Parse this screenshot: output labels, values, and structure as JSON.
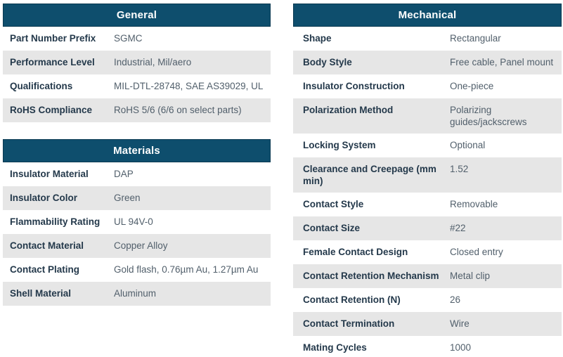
{
  "colors": {
    "header_bg": "#0e4e6d",
    "header_border": "#0b3a52",
    "header_text": "#ffffff",
    "row_alt_bg": "#e6e6e6",
    "label_color": "#24394b",
    "value_color": "#515f6b"
  },
  "tables": [
    {
      "title": "General",
      "rows": [
        {
          "label": "Part Number Prefix",
          "value": "SGMC"
        },
        {
          "label": "Performance Level",
          "value": "Industrial, Mil/aero"
        },
        {
          "label": "Qualifications",
          "value": "MIL-DTL-28748, SAE AS39029, UL"
        },
        {
          "label": "RoHS Compliance",
          "value": "RoHS 5/6 (6/6 on select parts)"
        }
      ]
    },
    {
      "title": "Materials",
      "rows": [
        {
          "label": "Insulator Material",
          "value": "DAP"
        },
        {
          "label": "Insulator Color",
          "value": "Green"
        },
        {
          "label": "Flammability Rating",
          "value": "UL 94V-0"
        },
        {
          "label": "Contact Material",
          "value": "Copper Alloy"
        },
        {
          "label": "Contact Plating",
          "value": "Gold flash, 0.76µm Au, 1.27µm Au"
        },
        {
          "label": "Shell Material",
          "value": "Aluminum"
        }
      ]
    },
    {
      "title": "Mechanical",
      "rows": [
        {
          "label": "Shape",
          "value": "Rectangular"
        },
        {
          "label": "Body Style",
          "value": "Free cable, Panel mount"
        },
        {
          "label": "Insulator Construction",
          "value": "One-piece"
        },
        {
          "label": "Polarization Method",
          "value": "Polarizing guides/jackscrews"
        },
        {
          "label": "Locking System",
          "value": "Optional"
        },
        {
          "label": "Clearance and Creepage (mm min)",
          "value": "1.52"
        },
        {
          "label": "Contact Style",
          "value": "Removable"
        },
        {
          "label": "Contact Size",
          "value": "#22"
        },
        {
          "label": "Female Contact Design",
          "value": "Closed entry"
        },
        {
          "label": "Contact Retention Mechanism",
          "value": "Metal clip"
        },
        {
          "label": "Contact Retention (N)",
          "value": "26"
        },
        {
          "label": "Contact Termination",
          "value": "Wire"
        },
        {
          "label": "Mating Cycles",
          "value": "1000"
        }
      ]
    }
  ]
}
